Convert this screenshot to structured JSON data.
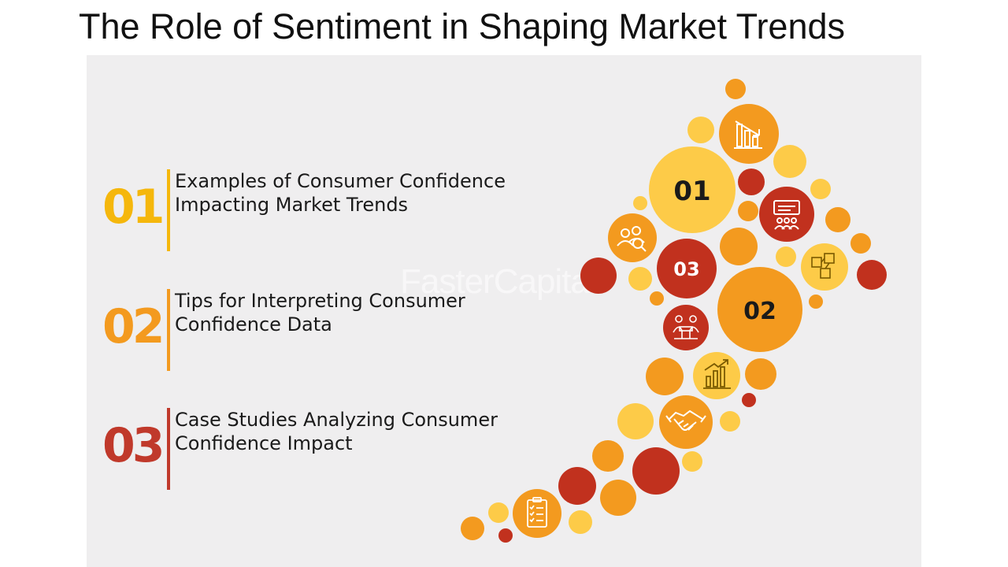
{
  "title": "The Role of Sentiment in Shaping Market Trends",
  "items": [
    {
      "number": "01",
      "text": "Examples of Consumer Confidence Impacting Market Trends",
      "color": "#f5b70c"
    },
    {
      "number": "02",
      "text": "Tips for Interpreting Consumer Confidence Data",
      "color": "#f39a1f"
    },
    {
      "number": "03",
      "text": "Case Studies Analyzing Consumer Confidence Impact",
      "color": "#c0392b"
    }
  ],
  "circle_labels": {
    "one": "01",
    "two": "02",
    "three": "03"
  },
  "watermark": "FasterCapital",
  "colors": {
    "yellow": "#fdcb48",
    "orange": "#f39a1f",
    "red": "#c1311e",
    "text_dark": "#1a1a1a"
  },
  "icons": [
    "bar-chart-down-icon",
    "presentation-icon",
    "people-search-icon",
    "sticky-notes-icon",
    "meeting-icon",
    "growth-chart-icon",
    "handshake-icon",
    "checklist-icon"
  ]
}
